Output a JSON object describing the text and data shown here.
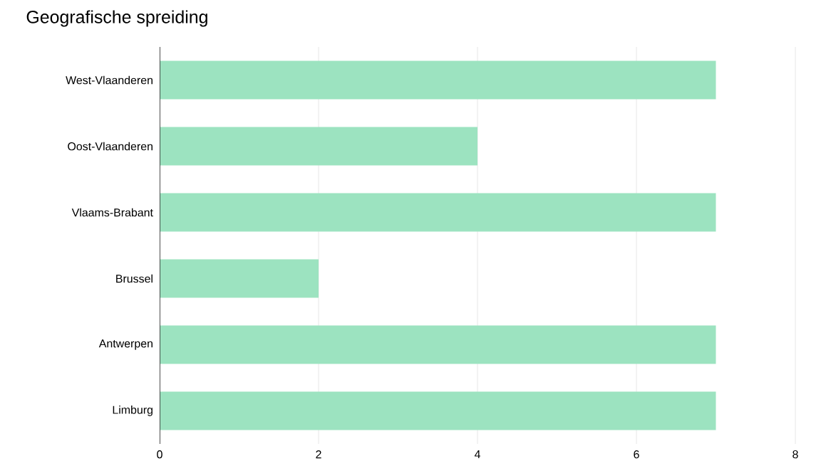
{
  "chart_data": {
    "type": "bar",
    "orientation": "horizontal",
    "title": "Geografische spreiding",
    "categories": [
      "West-Vlaanderen",
      "Oost-Vlaanderen",
      "Vlaams-Brabant",
      "Brussel",
      "Antwerpen",
      "Limburg"
    ],
    "values": [
      7,
      4,
      7,
      2,
      7,
      7
    ],
    "color": "#9ce3c0",
    "xlim": [
      0,
      8
    ],
    "xticks": [
      0,
      2,
      4,
      6,
      8
    ],
    "grid": "x"
  }
}
